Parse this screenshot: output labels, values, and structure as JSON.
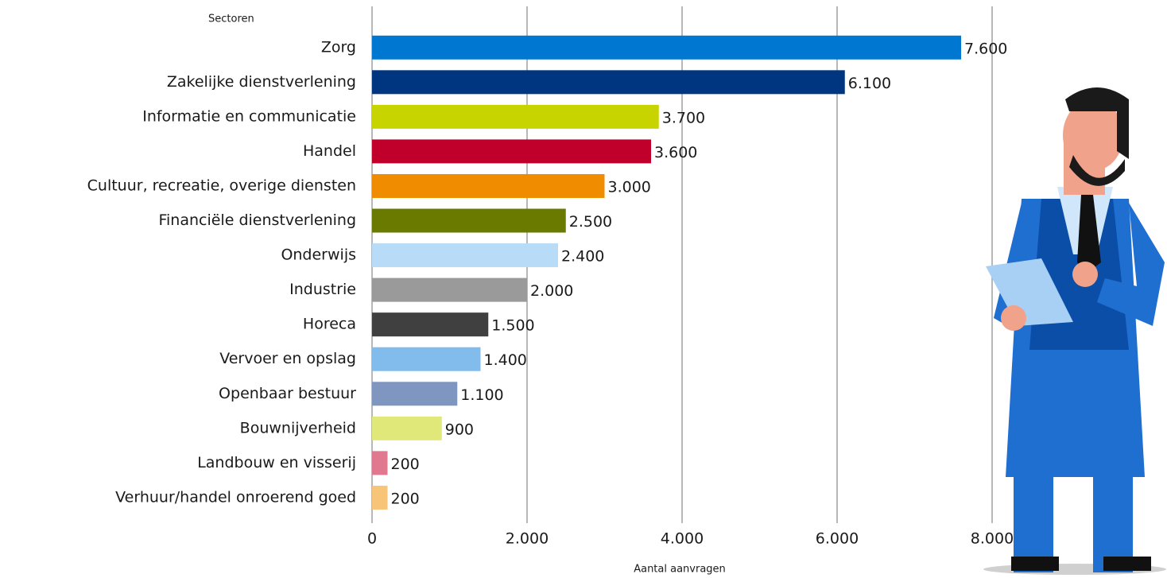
{
  "chart_data": {
    "type": "bar",
    "orientation": "horizontal",
    "y_label": "Sectoren",
    "x_label": "Aantal aanvragen",
    "categories": [
      "Zorg",
      "Zakelijke dienstverlening",
      "Informatie en communicatie",
      "Handel",
      "Cultuur, recreatie, overige diensten",
      "Financiële dienstverlening",
      "Onderwijs",
      "Industrie",
      "Horeca",
      "Vervoer en opslag",
      "Openbaar bestuur",
      "Bouwnijverheid",
      "Landbouw en visserij",
      "Verhuur/handel onroerend goed"
    ],
    "values": [
      7600,
      6100,
      3700,
      3600,
      3000,
      2500,
      2400,
      2000,
      1500,
      1400,
      1100,
      900,
      200,
      200
    ],
    "value_labels": [
      "7.600",
      "6.100",
      "3.700",
      "3.600",
      "3.000",
      "2.500",
      "2.400",
      "2.000",
      "1.500",
      "1.400",
      "1.100",
      "900",
      "200",
      "200"
    ],
    "colors": [
      "#0078d2",
      "#003580",
      "#c8d400",
      "#c0002a",
      "#f08c00",
      "#6a7a00",
      "#b8dcf8",
      "#9a9a9a",
      "#404040",
      "#82bcec",
      "#7f96c0",
      "#e0e87a",
      "#e07890",
      "#f8c478"
    ],
    "xlim": [
      0,
      8000
    ],
    "xticks": [
      0,
      {
        "value": 2000,
        "label": "2.000"
      },
      {
        "value": 4000,
        "label": "4.000"
      },
      {
        "value": 6000,
        "label": "6.000"
      },
      {
        "value": 8000,
        "label": "8.000"
      }
    ],
    "grid": true
  }
}
